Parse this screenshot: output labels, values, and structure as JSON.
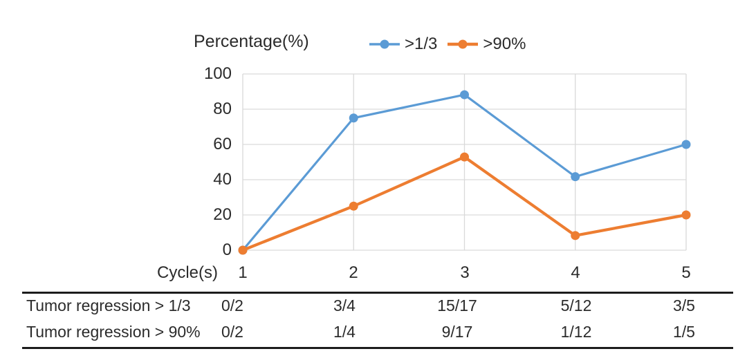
{
  "chart_data": {
    "type": "line",
    "title": "Percentage(%)",
    "xlabel": "Cycle(s)",
    "ylabel": "Percentage(%)",
    "x": [
      1,
      2,
      3,
      4,
      5
    ],
    "y_ticks": [
      0,
      20,
      40,
      60,
      80,
      100
    ],
    "ylim": [
      0,
      100
    ],
    "grid": true,
    "legend_position": "top",
    "series": [
      {
        "name": ">1/3",
        "color": "#5B9BD5",
        "values": [
          0,
          75,
          88.2,
          41.7,
          60
        ]
      },
      {
        "name": ">90%",
        "color": "#ED7D31",
        "values": [
          0,
          25,
          52.9,
          8.3,
          20
        ]
      }
    ]
  },
  "table": {
    "header_label": "Cycle(s)",
    "columns": [
      "1",
      "2",
      "3",
      "4",
      "5"
    ],
    "rows": [
      {
        "label": "Tumor regression > 1/3",
        "values": [
          "0/2",
          "3/4",
          "15/17",
          "5/12",
          "3/5"
        ]
      },
      {
        "label": "Tumor regression > 90%",
        "values": [
          "0/2",
          "1/4",
          "9/17",
          "1/12",
          "1/5"
        ]
      }
    ]
  },
  "colors": {
    "series1": "#5B9BD5",
    "series2": "#ED7D31",
    "gridline": "#D9D9D9",
    "text": "#2b2b2b",
    "table_rule": "#1c1c1c"
  }
}
